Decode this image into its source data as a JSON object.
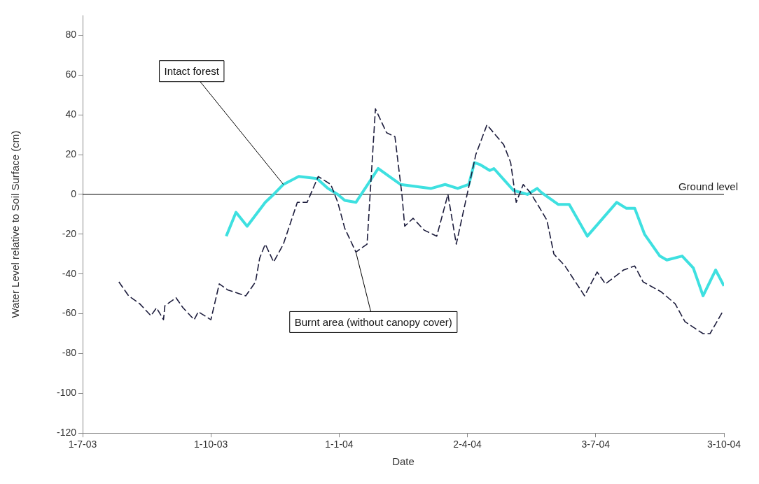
{
  "chart_data": {
    "type": "line",
    "xlabel": "Date",
    "ylabel": "Water Level relative to Soil Surface (cm)",
    "xlim": [
      "2003-07-01",
      "2004-10-03"
    ],
    "xticks": [
      {
        "value": "2003-07-01",
        "label": "1-7-03"
      },
      {
        "value": "2003-10-01",
        "label": "1-10-03"
      },
      {
        "value": "2004-01-01",
        "label": "1-1-04"
      },
      {
        "value": "2004-04-02",
        "label": "2-4-04"
      },
      {
        "value": "2004-07-03",
        "label": "3-7-04"
      },
      {
        "value": "2004-10-03",
        "label": "3-10-04"
      }
    ],
    "ylim": [
      -120,
      90
    ],
    "yticks": [
      -120,
      -100,
      -80,
      -60,
      -40,
      -20,
      0,
      20,
      40,
      60,
      80
    ],
    "grid": false,
    "legend": false,
    "series": [
      {
        "color": "#1c1c3c",
        "line_style": "dashed",
        "x": [
          "2003-07-27",
          "2003-08-03",
          "2003-08-11",
          "2003-08-19",
          "2003-08-23",
          "2003-08-28",
          "2003-08-29",
          "2003-09-06",
          "2003-09-11",
          "2003-09-19",
          "2003-09-22",
          "2003-10-01",
          "2003-10-07",
          "2003-10-13",
          "2003-10-26",
          "2003-11-02",
          "2003-11-05",
          "2003-11-09",
          "2003-11-15",
          "2003-11-22",
          "2003-12-02",
          "2003-12-09",
          "2003-12-17",
          "2003-12-26",
          "2003-12-31",
          "2004-01-05",
          "2004-01-13",
          "2004-01-21",
          "2004-01-27",
          "2004-02-04",
          "2004-02-10",
          "2004-02-15",
          "2004-02-17",
          "2004-02-23",
          "2004-03-02",
          "2004-03-11",
          "2004-03-19",
          "2004-03-25",
          "2004-04-08",
          "2004-04-16",
          "2004-04-28",
          "2004-05-03",
          "2004-05-07",
          "2004-05-12",
          "2004-05-17",
          "2004-05-24",
          "2004-05-29",
          "2004-06-03",
          "2004-06-11",
          "2004-06-25",
          "2004-07-04",
          "2004-07-10",
          "2004-07-23",
          "2004-07-31",
          "2004-08-06",
          "2004-08-19",
          "2004-08-29",
          "2004-09-05",
          "2004-09-18",
          "2004-09-23",
          "2004-10-02"
        ],
        "values": [
          -44,
          -51,
          -55,
          -61,
          -57,
          -63,
          -56,
          -52,
          -57,
          -63,
          -59,
          -63,
          -45,
          -48,
          -51,
          -44,
          -32,
          -25,
          -34,
          -25,
          -4,
          -4,
          9,
          5,
          -4,
          -17,
          -29,
          -25,
          43,
          31,
          29,
          0,
          -16,
          -12,
          -18,
          -21,
          0,
          -25,
          20,
          35,
          25,
          16,
          -4,
          5,
          1,
          -7,
          -13,
          -30,
          -36,
          -51,
          -39,
          -45,
          -38,
          -36,
          -44,
          -49,
          -55,
          -64,
          -70,
          -70,
          -59
        ]
      },
      {
        "color": "#3ee0e0",
        "line_style": "solid",
        "x": [
          "2003-10-12",
          "2003-10-19",
          "2003-10-27",
          "2003-11-09",
          "2003-11-15",
          "2003-11-22",
          "2003-12-03",
          "2003-12-16",
          "2003-12-24",
          "2003-12-31",
          "2004-01-05",
          "2004-01-13",
          "2004-01-29",
          "2004-02-14",
          "2004-03-07",
          "2004-03-17",
          "2004-03-26",
          "2004-04-03",
          "2004-04-07",
          "2004-04-11",
          "2004-04-18",
          "2004-04-21",
          "2004-05-05",
          "2004-05-15",
          "2004-05-22",
          "2004-05-25",
          "2004-06-06",
          "2004-06-14",
          "2004-06-27",
          "2004-07-18",
          "2004-07-25",
          "2004-07-31",
          "2004-08-07",
          "2004-08-18",
          "2004-08-23",
          "2004-09-03",
          "2004-09-11",
          "2004-09-18",
          "2004-09-27",
          "2004-10-03"
        ],
        "values": [
          -21,
          -9,
          -16,
          -4,
          0,
          5,
          9,
          8,
          3,
          0,
          -3,
          -4,
          13,
          5,
          3,
          5,
          3,
          5,
          16,
          15,
          12,
          13,
          2,
          0,
          3,
          1,
          -5,
          -5,
          -21,
          -4,
          -7,
          -7,
          -20,
          -31,
          -33,
          -31,
          -37,
          -51,
          -38,
          -46
        ]
      }
    ],
    "ref_lines": [
      {
        "axis": "y",
        "value": 0,
        "label": "Ground level",
        "color": "#000000"
      }
    ],
    "annotations": [
      {
        "text": "Intact forest",
        "x": "2003-11-22",
        "y": 5
      },
      {
        "text": "Burnt area (without canopy cover)",
        "x": "2004-01-13",
        "y": -29
      }
    ]
  }
}
